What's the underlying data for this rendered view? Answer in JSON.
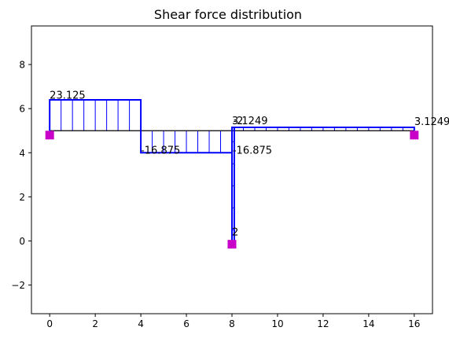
{
  "chart_data": {
    "type": "line",
    "title": "Shear force distribution",
    "xlabel": "",
    "ylabel": "",
    "xlim": [
      -0.8,
      16.8
    ],
    "ylim": [
      -3.3,
      9.75
    ],
    "xticks": [
      0,
      2,
      4,
      6,
      8,
      10,
      12,
      14,
      16
    ],
    "yticks": [
      -2,
      0,
      2,
      4,
      6,
      8
    ],
    "grid": false,
    "colors": {
      "diagram": "#0000ff",
      "beam": "#000000",
      "support": "#c800c8"
    },
    "beam": {
      "points": [
        [
          0,
          5
        ],
        [
          4,
          5
        ],
        [
          8,
          5
        ],
        [
          8,
          0
        ],
        [
          8,
          5
        ],
        [
          8.1,
          5
        ],
        [
          16,
          5
        ]
      ]
    },
    "elements": [
      {
        "x_start": 0,
        "x_end": 4,
        "baseline": 5,
        "value": 6.4,
        "label": "23.125",
        "hatch": [
          0.5,
          1,
          1.5,
          2,
          2.5,
          3,
          3.5
        ]
      },
      {
        "x_start": 4,
        "x_end": 8,
        "baseline": 5,
        "value": 4.0,
        "label": "-16.875",
        "hatch": [
          4.5,
          5,
          5.5,
          6,
          6.5,
          7,
          7.5
        ]
      },
      {
        "x_start": 8,
        "x_end": 8.1,
        "baseline": 5,
        "value": 5.15,
        "label": "3.1249",
        "hatch": []
      },
      {
        "x_start": 8.1,
        "x_end": 16,
        "baseline": 5,
        "value": 5.15,
        "label": "3.1249",
        "hatch": [
          8.5,
          9,
          9.5,
          10,
          10.5,
          11,
          11.5,
          12,
          12.5,
          13,
          13.5,
          14,
          14.5,
          15,
          15.5
        ]
      }
    ],
    "post": {
      "x": 8,
      "x_end": 8.1,
      "top": 5.0,
      "bottom": 0.0,
      "label": "-2"
    },
    "supports": [
      {
        "x": 0,
        "y": 4.8
      },
      {
        "x": 8,
        "y": -0.15
      },
      {
        "x": 16,
        "y": 4.8
      }
    ],
    "annotations": [
      {
        "text": "23.125",
        "x": 0,
        "y": 6.45
      },
      {
        "text": "-16.875",
        "x": 4,
        "y": 3.95
      },
      {
        "text": "-16.875",
        "x": 8.03,
        "y": 3.95
      },
      {
        "text": "3.1249",
        "x": 8.0,
        "y": 5.3
      },
      {
        "text": "3.1249",
        "x": 16,
        "y": 5.25
      },
      {
        "text": "2",
        "x": 8.0,
        "y": 0.25
      },
      {
        "text": "-2",
        "x": 8.05,
        "y": 5.3
      }
    ]
  }
}
